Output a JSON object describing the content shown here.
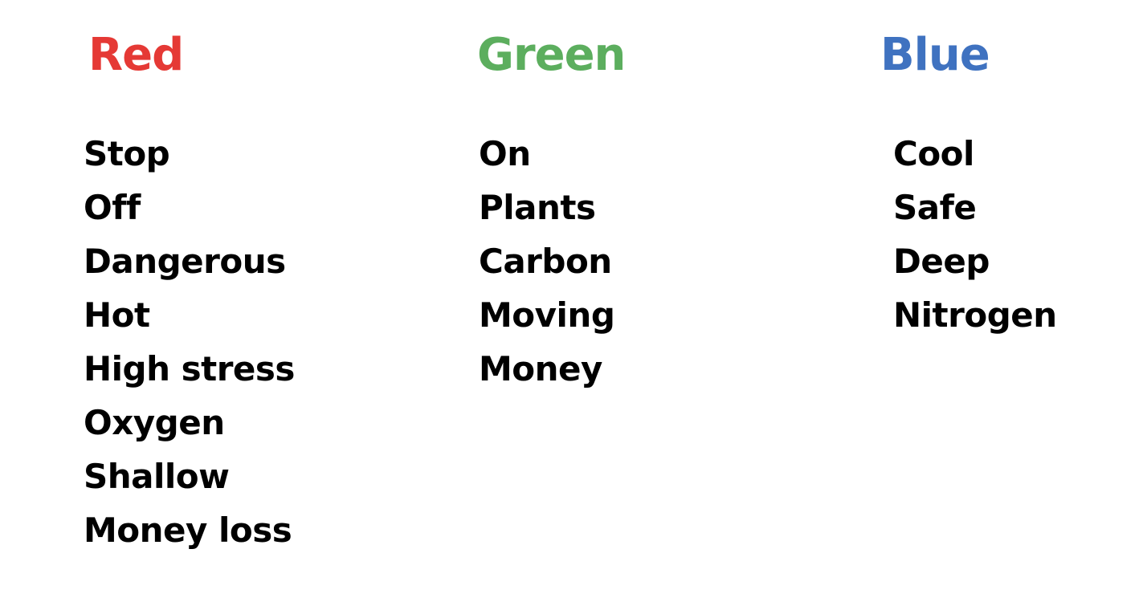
{
  "columns": [
    {
      "id": "red",
      "heading": "Red",
      "color": "#e53935",
      "items": [
        "Stop",
        "Off",
        "Dangerous",
        "Hot",
        "High stress",
        "Oxygen",
        "Shallow",
        "Money loss"
      ]
    },
    {
      "id": "green",
      "heading": "Green",
      "color": "#5cae5e",
      "items": [
        "On",
        "Plants",
        "Carbon",
        "Moving",
        "Money"
      ]
    },
    {
      "id": "blue",
      "heading": "Blue",
      "color": "#3f72c0",
      "items": [
        "Cool",
        "Safe",
        "Deep",
        "Nitrogen"
      ]
    }
  ]
}
